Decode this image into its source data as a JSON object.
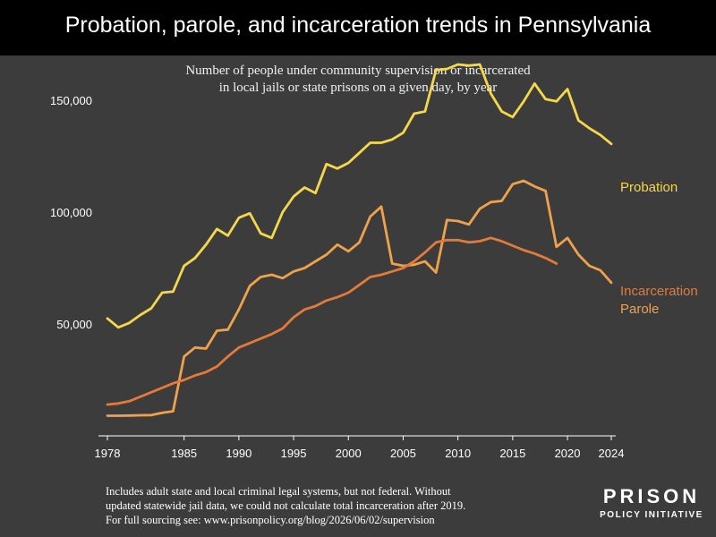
{
  "header": {
    "title": "Probation, parole, and incarceration trends in Pennsylvania",
    "subtitle_line1": "Number of people under community supervision or incarcerated",
    "subtitle_line2": "in local jails or state prisons on a given day, by year"
  },
  "footer": {
    "line1": "Includes adult state and local criminal legal systems, but not federal. Without",
    "line2": "updated statewide jail data, we could not calculate total incarceration after 2019.",
    "line3": "For full sourcing see: www.prisonpolicy.org/blog/2026/06/02/supervision"
  },
  "logo": {
    "line1": "PRISON",
    "line2": "POLICY INITIATIVE"
  },
  "colors": {
    "background": "#3c3c3c",
    "title_bar": "#000000",
    "probation": "#f5d84a",
    "parole": "#f0a24a",
    "incarceration": "#e47a3a",
    "axis": "#ffffff"
  },
  "chart_data": {
    "type": "line",
    "xlim": [
      1978,
      2024
    ],
    "ylim": [
      0,
      170000
    ],
    "x_ticks": [
      1978,
      1985,
      1990,
      1995,
      2000,
      2005,
      2010,
      2015,
      2020,
      2024
    ],
    "y_ticks": [
      {
        "value": 50000,
        "label": "50,000"
      },
      {
        "value": 100000,
        "label": "100,000"
      },
      {
        "value": 150000,
        "label": "150,000"
      }
    ],
    "grid": false,
    "series": [
      {
        "name": "Probation",
        "color": "#f5d84a",
        "x": [
          1978,
          1979,
          1980,
          1981,
          1982,
          1983,
          1984,
          1985,
          1986,
          1987,
          1988,
          1989,
          1990,
          1991,
          1992,
          1993,
          1994,
          1995,
          1996,
          1997,
          1998,
          1999,
          2000,
          2001,
          2002,
          2003,
          2004,
          2005,
          2006,
          2007,
          2008,
          2009,
          2010,
          2011,
          2012,
          2013,
          2014,
          2015,
          2016,
          2017,
          2018,
          2019,
          2020,
          2021,
          2022,
          2023,
          2024
        ],
        "values": [
          52500,
          48500,
          50500,
          54000,
          57000,
          64000,
          64500,
          76000,
          79500,
          85500,
          92500,
          89500,
          97500,
          99500,
          90500,
          88500,
          100000,
          107000,
          111000,
          108500,
          121500,
          119500,
          122000,
          126500,
          131000,
          131000,
          132500,
          135500,
          144000,
          145000,
          163500,
          164000,
          166000,
          165500,
          166000,
          153000,
          145000,
          142500,
          149500,
          157500,
          150500,
          149500,
          155000,
          141000,
          137500,
          134500,
          130500
        ]
      },
      {
        "name": "Parole",
        "color": "#f0a24a",
        "x": [
          1978,
          1979,
          1980,
          1981,
          1982,
          1983,
          1984,
          1985,
          1986,
          1987,
          1988,
          1989,
          1990,
          1991,
          1992,
          1993,
          1994,
          1995,
          1996,
          1997,
          1998,
          1999,
          2000,
          2001,
          2002,
          2003,
          2004,
          2005,
          2006,
          2007,
          2008,
          2009,
          2010,
          2011,
          2012,
          2013,
          2014,
          2015,
          2016,
          2017,
          2018,
          2019,
          2020,
          2021,
          2022,
          2023,
          2024
        ],
        "values": [
          9000,
          9000,
          9100,
          9200,
          9300,
          10300,
          11000,
          35500,
          39500,
          39000,
          47000,
          47500,
          56500,
          67000,
          71000,
          72000,
          70500,
          73500,
          75000,
          78000,
          81000,
          85500,
          82500,
          86500,
          98000,
          102500,
          77000,
          76000,
          76500,
          78000,
          73000,
          96500,
          96000,
          94500,
          101500,
          104500,
          105000,
          112500,
          114000,
          111500,
          109500,
          84500,
          88500,
          81000,
          76000,
          74000,
          68500
        ]
      },
      {
        "name": "Incarceration",
        "color": "#e47a3a",
        "x": [
          1978,
          1979,
          1980,
          1981,
          1982,
          1983,
          1984,
          1985,
          1986,
          1987,
          1988,
          1989,
          1990,
          1991,
          1992,
          1993,
          1994,
          1995,
          1996,
          1997,
          1998,
          1999,
          2000,
          2001,
          2002,
          2003,
          2004,
          2005,
          2006,
          2007,
          2008,
          2009,
          2010,
          2011,
          2012,
          2013,
          2014,
          2015,
          2016,
          2017,
          2018,
          2019
        ],
        "values": [
          14000,
          14500,
          15500,
          17500,
          19500,
          21500,
          23500,
          25000,
          27000,
          28500,
          31000,
          35500,
          39500,
          41500,
          43500,
          45500,
          48000,
          53000,
          56500,
          58000,
          60500,
          62000,
          64000,
          67500,
          71000,
          72000,
          73500,
          75000,
          78000,
          82000,
          86500,
          87500,
          87500,
          86500,
          87000,
          88500,
          87000,
          85000,
          83000,
          81500,
          79500,
          77000
        ]
      }
    ]
  }
}
